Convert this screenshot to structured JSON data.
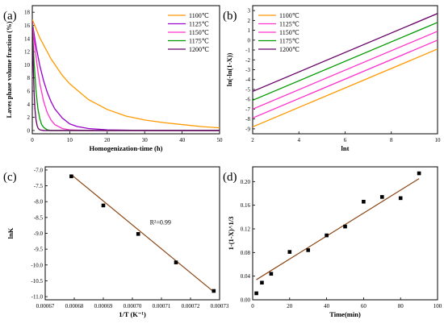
{
  "chart_data": [
    {
      "panel": "(a)",
      "type": "line",
      "xlabel": "Homogenization-time (h)",
      "ylabel": "Laves phase volume fraction (%)",
      "xlim": [
        0,
        50
      ],
      "ylim": [
        -0.5,
        19
      ],
      "xticks": [
        "0",
        "10",
        "20",
        "30",
        "40",
        "50"
      ],
      "yticks": [
        "0",
        "2",
        "4",
        "6",
        "8",
        "10",
        "12",
        "14",
        "16",
        "18"
      ],
      "legend_position": "top-right",
      "series": [
        {
          "name": "1100℃",
          "color": "#ff9900",
          "x": [
            0,
            2,
            5,
            8,
            10,
            15,
            20,
            25,
            30,
            35,
            40,
            45,
            50
          ],
          "y": [
            16.9,
            14.1,
            10.9,
            8.4,
            7.1,
            4.7,
            3.2,
            2.2,
            1.6,
            1.2,
            0.9,
            0.6,
            0.4
          ]
        },
        {
          "name": "1125℃",
          "color": "#9900cc",
          "x": [
            0,
            1,
            2,
            3,
            4,
            5,
            6,
            8,
            10,
            12,
            15,
            20,
            30,
            50
          ],
          "y": [
            16.5,
            12.8,
            9.9,
            7.6,
            5.8,
            4.4,
            3.3,
            1.9,
            1.0,
            0.6,
            0.3,
            0.1,
            0.0,
            0.0
          ]
        },
        {
          "name": "1150℃",
          "color": "#ff33cc",
          "x": [
            0,
            0.5,
            1,
            1.5,
            2,
            3,
            4,
            5,
            6,
            8,
            10,
            15,
            50
          ],
          "y": [
            16.3,
            13.7,
            11.2,
            9.0,
            7.2,
            4.5,
            2.7,
            1.6,
            0.9,
            0.3,
            0.1,
            0.0,
            0.0
          ]
        },
        {
          "name": "1175℃",
          "color": "#009900",
          "x": [
            0,
            0.25,
            0.5,
            1,
            1.5,
            2,
            2.5,
            3,
            4,
            5,
            50
          ],
          "y": [
            16.1,
            13.0,
            10.2,
            6.0,
            3.3,
            1.8,
            0.9,
            0.5,
            0.1,
            0.0,
            0.0
          ]
        },
        {
          "name": "1200℃",
          "color": "#660066",
          "x": [
            0,
            0.15,
            0.3,
            0.5,
            0.7,
            1,
            1.3,
            1.6,
            2,
            3,
            50
          ],
          "y": [
            15.8,
            12.2,
            9.0,
            5.6,
            3.3,
            1.6,
            0.7,
            0.3,
            0.1,
            0.0,
            0.0
          ]
        }
      ]
    },
    {
      "panel": "(b)",
      "type": "line",
      "xlabel": "lnt",
      "ylabel": "ln(-ln(1-X))",
      "xlim": [
        2,
        10
      ],
      "ylim": [
        -9.5,
        3.5
      ],
      "xticks": [
        "2",
        "4",
        "6",
        "8",
        "10"
      ],
      "yticks": [
        "-9",
        "-8",
        "-7",
        "-6",
        "-5",
        "-4",
        "-3",
        "-2",
        "-1",
        "0",
        "1",
        "2",
        "3"
      ],
      "legend_position": "top-left",
      "series": [
        {
          "name": "1100℃",
          "color": "#ff9900",
          "x": [
            2,
            10
          ],
          "y": [
            -8.8,
            -0.9
          ]
        },
        {
          "name": "1125℃",
          "color": "#ff33cc",
          "x": [
            2,
            10
          ],
          "y": [
            -7.9,
            0.0
          ]
        },
        {
          "name": "1150℃",
          "color": "#ff33cc",
          "x": [
            2,
            10
          ],
          "y": [
            -7.0,
            0.9
          ]
        },
        {
          "name": "1175℃",
          "color": "#009900",
          "x": [
            2,
            10
          ],
          "y": [
            -6.1,
            1.8
          ]
        },
        {
          "name": "1200℃",
          "color": "#660066",
          "x": [
            2,
            10
          ],
          "y": [
            -5.2,
            2.7
          ]
        }
      ]
    },
    {
      "panel": "(c)",
      "type": "scatter",
      "xlabel": "1/T (K⁻¹)",
      "ylabel": "lnK",
      "xlim": [
        0.00067,
        0.00073
      ],
      "ylim": [
        -11.1,
        -6.9
      ],
      "xticks": [
        "0.00067",
        "0.00068",
        "0.00069",
        "0.00070",
        "0.00071",
        "0.00072",
        "0.00073"
      ],
      "yticks": [
        "-7.0",
        "-7.5",
        "-8.0",
        "-8.5",
        "-9.0",
        "-9.5",
        "-10.0",
        "-10.5",
        "-11.0"
      ],
      "annotation": "R²=0.99",
      "fit_line": {
        "color": "#8b4513",
        "x": [
          0.000679,
          0.000728
        ],
        "y": [
          -7.15,
          -10.85
        ]
      },
      "points": {
        "x": [
          0.000679,
          0.00069,
          0.000702,
          0.000715,
          0.000728
        ],
        "y": [
          -7.2,
          -8.12,
          -9.02,
          -9.92,
          -10.82
        ]
      }
    },
    {
      "panel": "(d)",
      "type": "scatter",
      "xlabel": "Time(min)",
      "ylabel": "1-(1-X)^1/3",
      "xlim": [
        0,
        100
      ],
      "ylim": [
        0,
        0.225
      ],
      "xticks": [
        "0",
        "20",
        "40",
        "60",
        "80",
        "100"
      ],
      "yticks": [
        "0.00",
        "0.04",
        "0.08",
        "0.12",
        "0.16",
        "0.20"
      ],
      "fit_line": {
        "color": "#8b4513",
        "x": [
          2,
          90
        ],
        "y": [
          0.034,
          0.205
        ]
      },
      "points": {
        "x": [
          2,
          5,
          10,
          20,
          30,
          40,
          50,
          60,
          70,
          80,
          90
        ],
        "y": [
          0.011,
          0.029,
          0.044,
          0.081,
          0.084,
          0.109,
          0.124,
          0.166,
          0.174,
          0.172,
          0.214
        ]
      }
    }
  ]
}
